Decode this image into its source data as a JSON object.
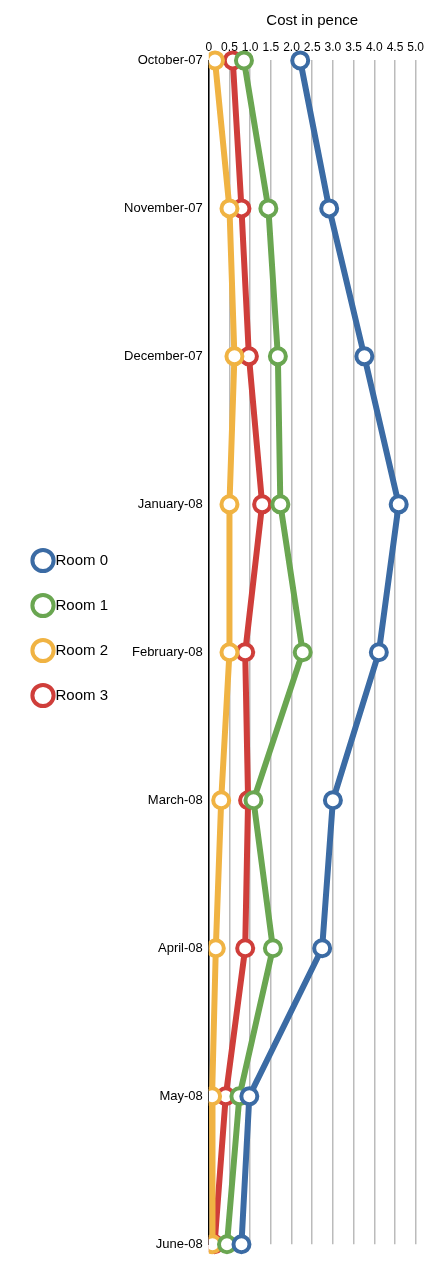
{
  "chart_data": {
    "type": "line",
    "orientation": "horizontal",
    "xlabel": "Cost in pence",
    "categories": [
      "October-07",
      "November-07",
      "December-07",
      "January-08",
      "February-08",
      "March-08",
      "April-08",
      "May-08",
      "June-08"
    ],
    "series": [
      {
        "name": "Room 0",
        "color": "#3b6ba4",
        "values": [
          2.21,
          2.91,
          3.76,
          4.59,
          4.11,
          3.0,
          2.74,
          0.98,
          0.79
        ]
      },
      {
        "name": "Room 1",
        "color": "#6aa651",
        "values": [
          0.85,
          1.44,
          1.67,
          1.73,
          2.27,
          1.08,
          1.55,
          0.74,
          0.44
        ]
      },
      {
        "name": "Room 2",
        "color": "#f0b343",
        "values": [
          0.15,
          0.5,
          0.62,
          0.5,
          0.5,
          0.3,
          0.17,
          0.08,
          0.09
        ]
      },
      {
        "name": "Room 3",
        "color": "#cf3e3a",
        "values": [
          0.58,
          0.79,
          0.97,
          1.29,
          0.88,
          0.95,
          0.88,
          0.41,
          0.14
        ]
      }
    ],
    "xlim": [
      0,
      5
    ],
    "xticks": [
      0,
      0.5,
      {
        "value": 1,
        "label": "1.0"
      },
      1.5,
      {
        "value": 2,
        "label": "2.0"
      },
      2.5,
      {
        "value": 3,
        "label": "3.0"
      },
      3.5,
      {
        "value": 4,
        "label": "4.0"
      },
      4.5,
      {
        "value": 5,
        "label": "5.0"
      }
    ],
    "grid": "x",
    "legend": "left",
    "marker": "circle",
    "line_style": "solid"
  }
}
